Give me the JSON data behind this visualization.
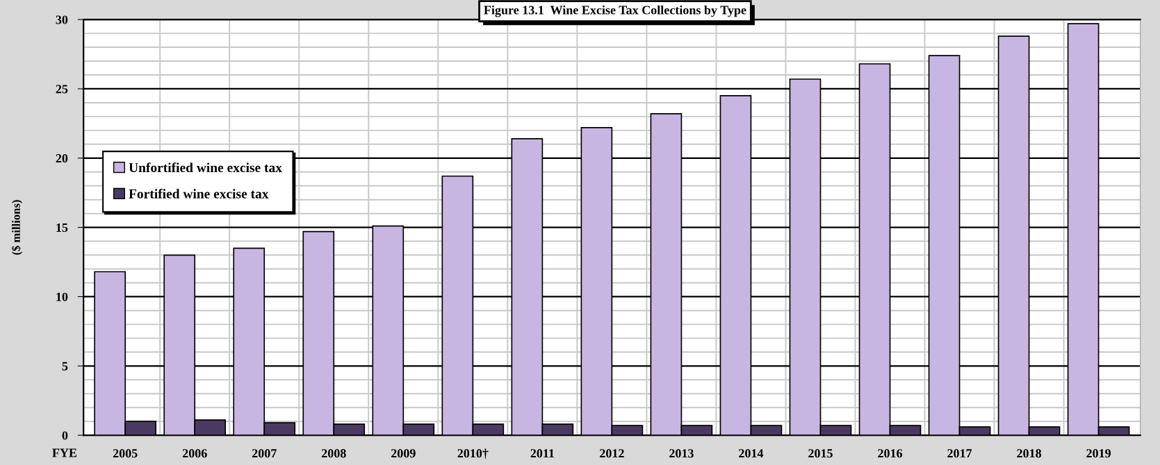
{
  "chart_data": {
    "type": "bar",
    "title": "Figure 13.1  Wine Excise Tax Collections by Type",
    "xlabel": "FYE",
    "ylabel": "($ millions)",
    "categories": [
      "2005",
      "2006",
      "2007",
      "2008",
      "2009",
      "2010†",
      "2011",
      "2012",
      "2013",
      "2014",
      "2015",
      "2016",
      "2017",
      "2018",
      "2019"
    ],
    "series": [
      {
        "name": "Unfortified wine excise tax",
        "color": "#c8b6e2",
        "values": [
          11.8,
          13.0,
          13.5,
          14.7,
          15.1,
          18.7,
          21.4,
          22.2,
          23.2,
          24.5,
          25.7,
          26.8,
          27.4,
          28.8,
          29.7
        ]
      },
      {
        "name": "Fortified wine excise tax",
        "color": "#4a3a62",
        "values": [
          1.0,
          1.1,
          0.9,
          0.8,
          0.8,
          0.8,
          0.8,
          0.7,
          0.7,
          0.7,
          0.7,
          0.7,
          0.6,
          0.6,
          0.6
        ]
      }
    ],
    "ylim": [
      0,
      30
    ],
    "yticks": [
      0,
      5,
      10,
      15,
      20,
      25,
      30
    ],
    "grid": true,
    "legend": "left"
  }
}
